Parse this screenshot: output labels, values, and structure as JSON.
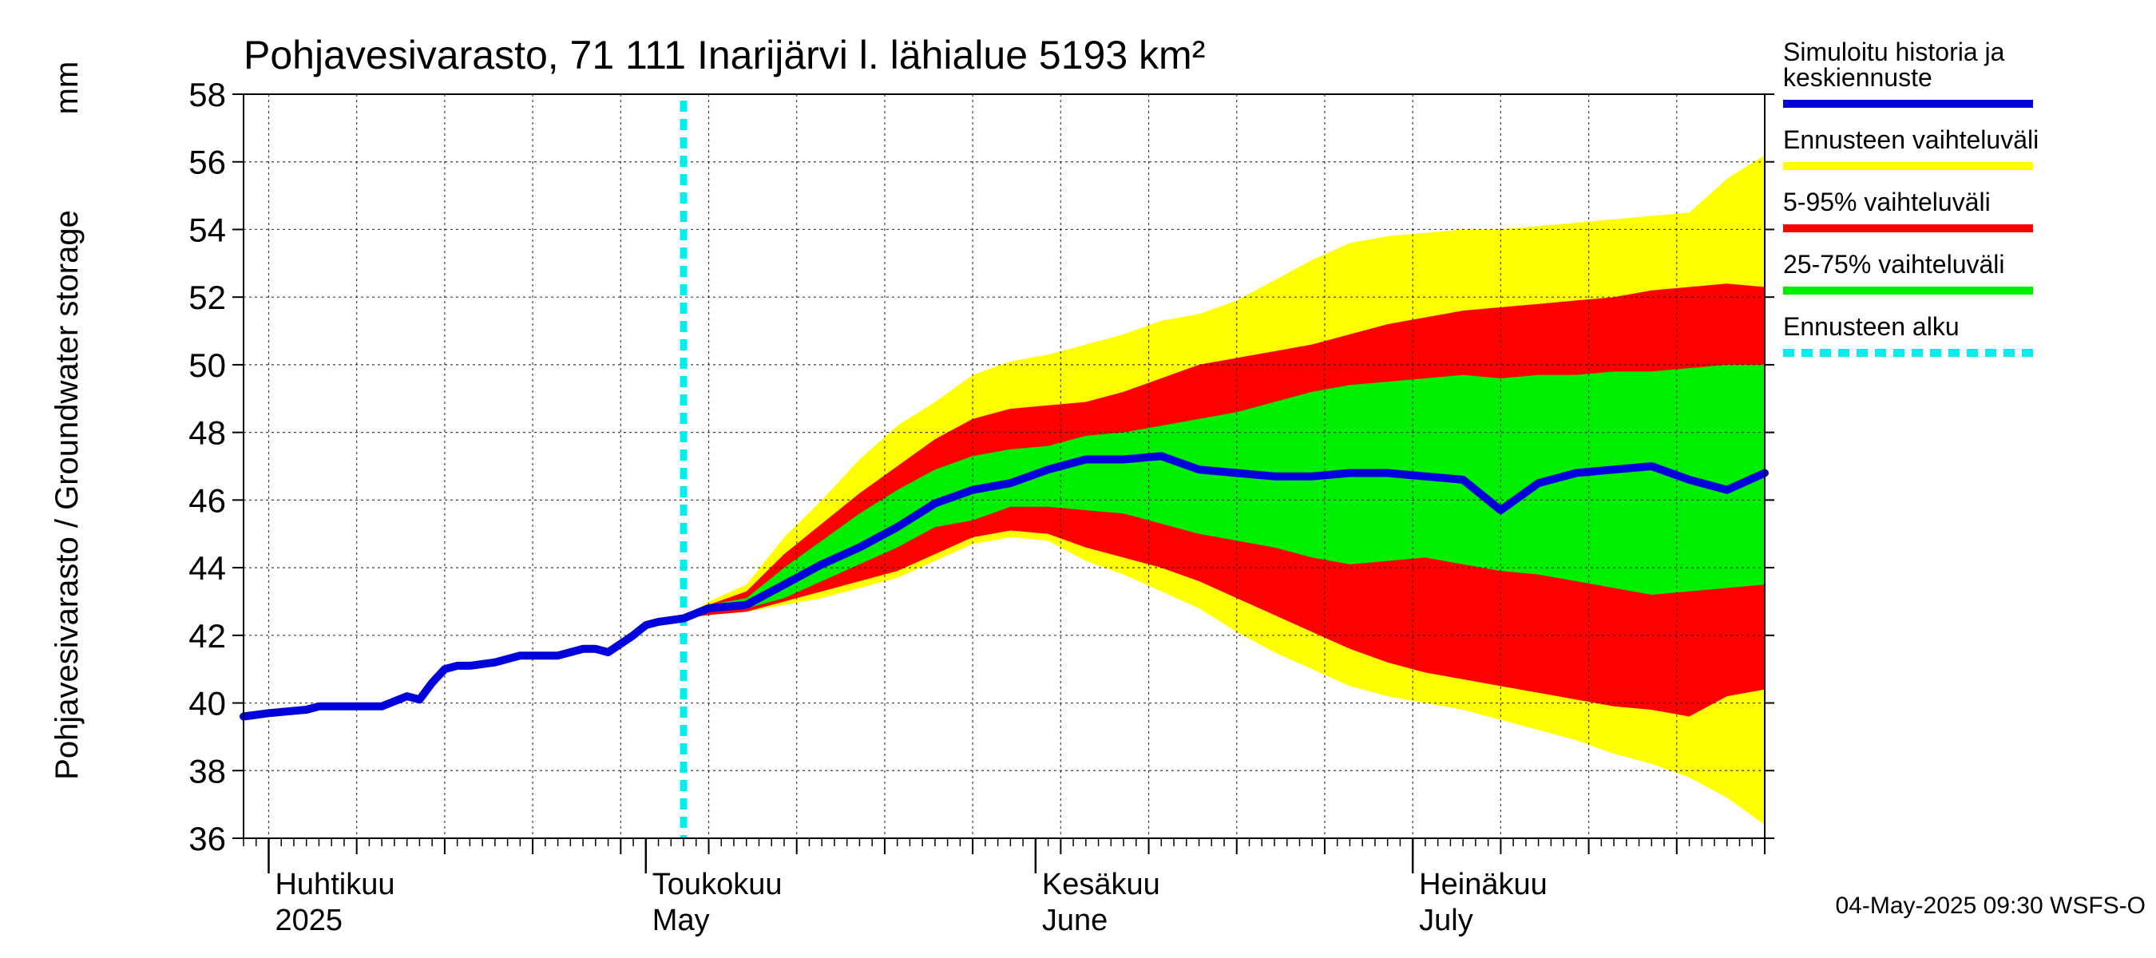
{
  "chart_data": {
    "type": "area",
    "title": "Pohjavesivarasto, 71 111 Inarijärvi l. lähialue 5193 km²",
    "ylabel": "Pohjavesivarasto / Groundwater storage",
    "yunit": "mm",
    "ylim": [
      36,
      58
    ],
    "yticks": [
      "36",
      "38",
      "40",
      "42",
      "44",
      "46",
      "48",
      "50",
      "52",
      "54",
      "56",
      "58"
    ],
    "xlim": [
      "2025-03-30",
      "2025-07-29"
    ],
    "grid": true,
    "forecast_start": "2025-05-04",
    "months": [
      {
        "date": "2025-04-01",
        "line1": "Huhtikuu",
        "line2": "2025"
      },
      {
        "date": "2025-05-01",
        "line1": "Toukokuu",
        "line2": "May"
      },
      {
        "date": "2025-06-01",
        "line1": "Kesäkuu",
        "line2": "June"
      },
      {
        "date": "2025-07-01",
        "line1": "Heinäkuu",
        "line2": "July"
      }
    ],
    "history": {
      "dates": [
        "2025-03-30",
        "2025-04-01",
        "2025-04-04",
        "2025-04-05",
        "2025-04-07",
        "2025-04-10",
        "2025-04-12",
        "2025-04-13",
        "2025-04-14",
        "2025-04-15",
        "2025-04-16",
        "2025-04-17",
        "2025-04-19",
        "2025-04-21",
        "2025-04-22",
        "2025-04-24",
        "2025-04-26",
        "2025-04-27",
        "2025-04-28",
        "2025-04-30",
        "2025-05-01",
        "2025-05-02",
        "2025-05-03",
        "2025-05-04"
      ],
      "values": [
        39.6,
        39.7,
        39.8,
        39.9,
        39.9,
        39.9,
        40.2,
        40.1,
        40.6,
        41.0,
        41.1,
        41.1,
        41.2,
        41.4,
        41.4,
        41.4,
        41.6,
        41.6,
        41.5,
        42.0,
        42.3,
        42.4,
        42.45,
        42.5
      ]
    },
    "forecast": {
      "dates": [
        "2025-05-04",
        "2025-05-06",
        "2025-05-09",
        "2025-05-12",
        "2025-05-15",
        "2025-05-18",
        "2025-05-21",
        "2025-05-24",
        "2025-05-27",
        "2025-05-30",
        "2025-06-02",
        "2025-06-05",
        "2025-06-08",
        "2025-06-11",
        "2025-06-14",
        "2025-06-17",
        "2025-06-20",
        "2025-06-23",
        "2025-06-26",
        "2025-06-29",
        "2025-07-02",
        "2025-07-05",
        "2025-07-08",
        "2025-07-11",
        "2025-07-14",
        "2025-07-17",
        "2025-07-20",
        "2025-07-23",
        "2025-07-26",
        "2025-07-29"
      ],
      "median": [
        42.5,
        42.8,
        42.9,
        43.5,
        44.1,
        44.6,
        45.2,
        45.9,
        46.3,
        46.5,
        46.9,
        47.2,
        47.2,
        47.3,
        46.9,
        46.8,
        46.7,
        46.7,
        46.8,
        46.8,
        46.7,
        46.6,
        45.7,
        46.5,
        46.8,
        46.9,
        47.0,
        46.6,
        46.3,
        46.8
      ],
      "p25": [
        42.5,
        42.7,
        42.8,
        43.1,
        43.6,
        44.1,
        44.6,
        45.2,
        45.4,
        45.8,
        45.8,
        45.7,
        45.6,
        45.3,
        45.0,
        44.8,
        44.6,
        44.3,
        44.1,
        44.2,
        44.3,
        44.1,
        43.9,
        43.8,
        43.6,
        43.4,
        43.2,
        43.3,
        43.4,
        43.5
      ],
      "p75": [
        42.5,
        42.9,
        43.1,
        44.0,
        44.8,
        45.6,
        46.3,
        46.9,
        47.3,
        47.5,
        47.6,
        47.9,
        48.0,
        48.2,
        48.4,
        48.6,
        48.9,
        49.2,
        49.4,
        49.5,
        49.6,
        49.7,
        49.6,
        49.7,
        49.7,
        49.8,
        49.8,
        49.9,
        50.0,
        50.0
      ],
      "p5": [
        42.5,
        42.6,
        42.7,
        43.0,
        43.3,
        43.6,
        43.9,
        44.4,
        44.9,
        45.1,
        45.0,
        44.6,
        44.3,
        44.0,
        43.6,
        43.1,
        42.6,
        42.1,
        41.6,
        41.2,
        40.9,
        40.7,
        40.5,
        40.3,
        40.1,
        39.9,
        39.8,
        39.6,
        40.2,
        40.4
      ],
      "p95": [
        42.5,
        42.9,
        43.3,
        44.4,
        45.3,
        46.2,
        47.0,
        47.8,
        48.4,
        48.7,
        48.8,
        48.9,
        49.2,
        49.6,
        50.0,
        50.2,
        50.4,
        50.6,
        50.9,
        51.2,
        51.4,
        51.6,
        51.7,
        51.8,
        51.9,
        52.0,
        52.2,
        52.3,
        52.4,
        52.3
      ],
      "min": [
        42.5,
        42.6,
        42.7,
        42.9,
        43.1,
        43.4,
        43.7,
        44.2,
        44.7,
        44.9,
        44.8,
        44.2,
        43.8,
        43.3,
        42.8,
        42.1,
        41.5,
        41.0,
        40.5,
        40.2,
        40.0,
        39.8,
        39.5,
        39.2,
        38.9,
        38.5,
        38.2,
        37.8,
        37.2,
        36.4
      ],
      "max": [
        42.5,
        43.0,
        43.5,
        44.9,
        46.0,
        47.2,
        48.2,
        48.9,
        49.7,
        50.1,
        50.3,
        50.6,
        50.9,
        51.3,
        51.5,
        51.9,
        52.5,
        53.1,
        53.6,
        53.8,
        53.9,
        54.0,
        54.0,
        54.1,
        54.2,
        54.3,
        54.4,
        54.5,
        55.5,
        56.2
      ]
    },
    "colors": {
      "history": "#0000dd",
      "range": "#ffff00",
      "p5_95": "#ff0000",
      "p25_75": "#00ee00",
      "forecast_start": "#00eeee"
    },
    "legend": [
      {
        "label": "Simuloitu historia ja keskiennuste",
        "color": "#0000dd",
        "style": "solid"
      },
      {
        "label": "Ennusteen vaihteluväli",
        "color": "#ffff00",
        "style": "solid"
      },
      {
        "label": "5-95% vaihteluväli",
        "color": "#ff0000",
        "style": "solid"
      },
      {
        "label": "25-75% vaihteluväli",
        "color": "#00ee00",
        "style": "solid"
      },
      {
        "label": "Ennusteen alku",
        "color": "#00eeee",
        "style": "dashed"
      }
    ],
    "legend_position": "right",
    "timestamp": "04-May-2025 09:30 WSFS-O"
  }
}
